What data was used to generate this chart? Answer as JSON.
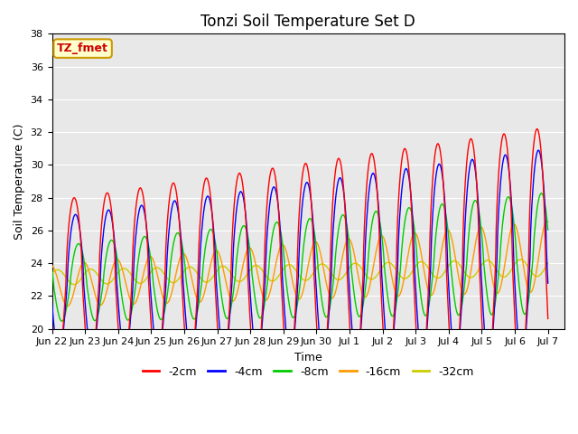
{
  "title": "Tonzi Soil Temperature Set D",
  "xlabel": "Time",
  "ylabel": "Soil Temperature (C)",
  "ylim": [
    20,
    38
  ],
  "background_color": "#ffffff",
  "plot_bg_color": "#e8e8e8",
  "grid_color": "#ffffff",
  "series_colors": {
    "-2cm": "#ff0000",
    "-4cm": "#0000ff",
    "-8cm": "#00cc00",
    "-16cm": "#ff9900",
    "-32cm": "#cccc00"
  },
  "legend_labels": [
    "-2cm",
    "-4cm",
    "-8cm",
    "-16cm",
    "-32cm"
  ],
  "x_tick_labels": [
    "Jun 22",
    "Jun 23",
    "Jun 24",
    "Jun 25",
    "Jun 26",
    "Jun 27",
    "Jun 28",
    "Jun 29",
    "Jun 30",
    "Jul 1",
    "Jul 2",
    "Jul 3",
    "Jul 4",
    "Jul 5",
    "Jul 6",
    "Jul 7"
  ],
  "annotation_text": "TZ_fmet",
  "annotation_color": "#cc0000",
  "annotation_bg": "#ffffcc",
  "annotation_border": "#cc9900"
}
